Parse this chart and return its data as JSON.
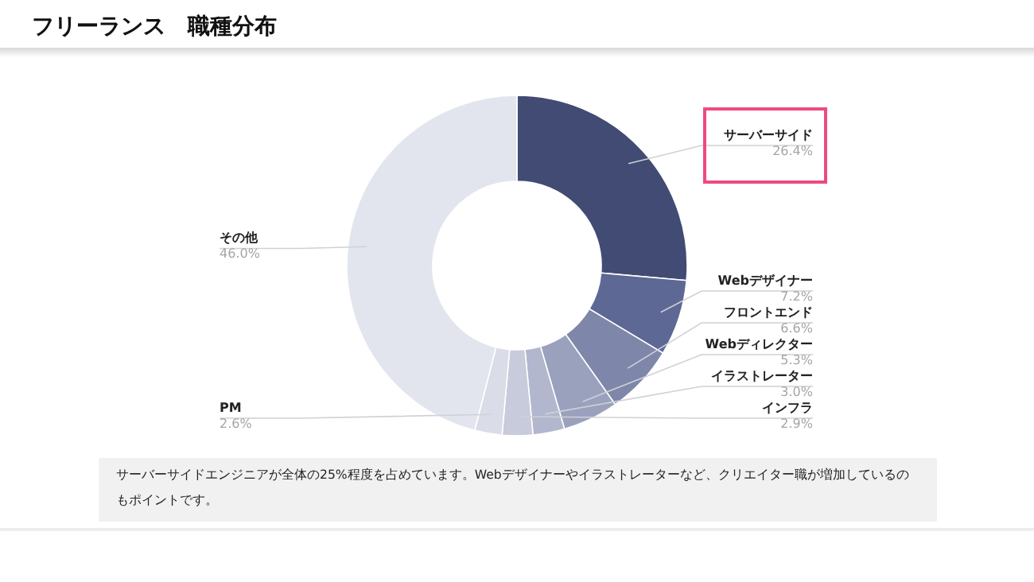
{
  "chart_data": {
    "type": "donut",
    "title": "フリーランス　職種分布",
    "categories": [
      "サーバーサイド",
      "Webデザイナー",
      "フロントエンド",
      "Webディレクター",
      "イラストレーター",
      "インフラ",
      "PM",
      "その他"
    ],
    "values": [
      26.4,
      7.2,
      6.6,
      5.3,
      3.0,
      2.9,
      2.6,
      46.0
    ],
    "value_labels": [
      "26.4%",
      "7.2%",
      "6.6%",
      "5.3%",
      "3.0%",
      "2.9%",
      "2.6%",
      "46.0%"
    ],
    "colors": [
      "#414b73",
      "#5e6894",
      "#7e87aa",
      "#9aa1bd",
      "#b3b7cd",
      "#c8cbdb",
      "#dadce7",
      "#e3e5ee"
    ],
    "annotations": [
      "サーバーサイドエンジニアが全体の25%程度を占めています。Webデザイナーやイラストレーターなど、クリエイター職が増加しているのもポイントです。"
    ]
  }
}
